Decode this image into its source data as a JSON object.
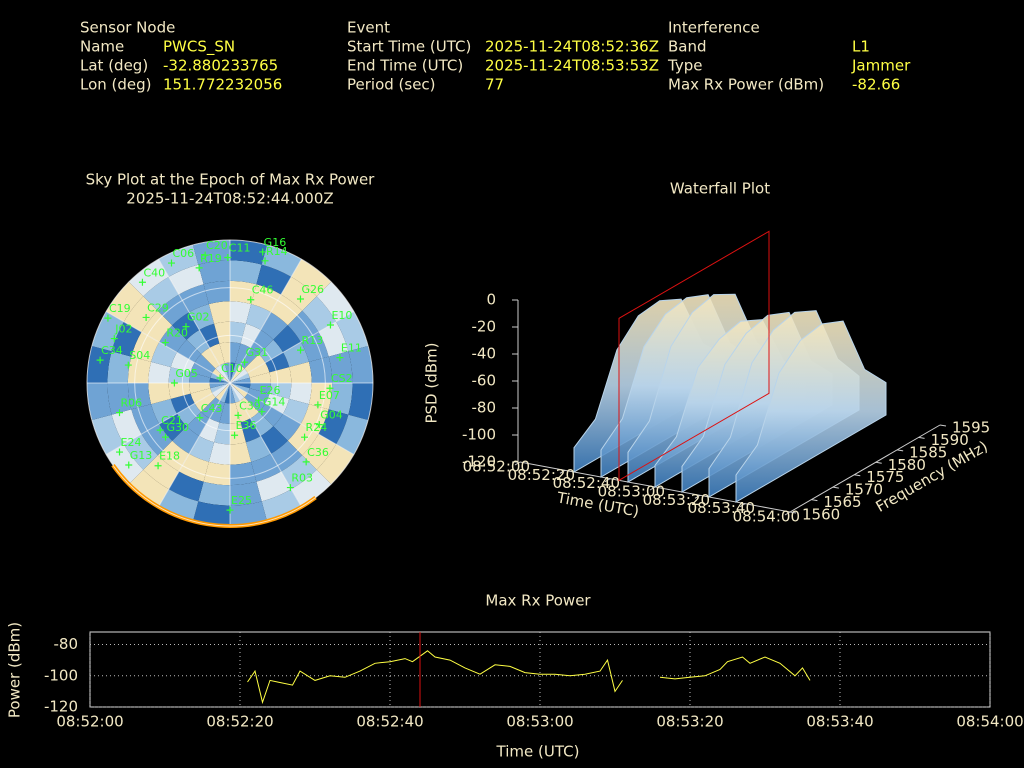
{
  "header": {
    "sensor_node": {
      "title": "Sensor Node",
      "rows": [
        [
          "Name",
          "PWCS_SN"
        ],
        [
          "Lat (deg)",
          "-32.880233765"
        ],
        [
          "Lon (deg)",
          "151.772232056"
        ]
      ]
    },
    "event": {
      "title": "Event",
      "rows": [
        [
          "Start Time (UTC)",
          "2025-11-24T08:52:36Z"
        ],
        [
          "End Time (UTC)",
          "2025-11-24T08:53:53Z"
        ],
        [
          "Period (sec)",
          "77"
        ]
      ]
    },
    "interference": {
      "title": "Interference",
      "rows": [
        [
          "Band",
          "L1"
        ],
        [
          "Type",
          "Jammer"
        ],
        [
          "Max Rx Power (dBm)",
          "-82.66"
        ]
      ]
    }
  },
  "chart_data": [
    {
      "type": "polar-scatter",
      "title": "Sky Plot at the Epoch of Max Rx Power",
      "subtitle": "2025-11-24T08:52:44.000Z",
      "color": "#33ff33",
      "ellim": [
        0,
        90
      ],
      "grid": true,
      "labels": [
        "G16",
        "R14",
        "C20",
        "C11",
        "R19",
        "C06",
        "C40",
        "G26",
        "C46",
        "E10",
        "R13",
        "E11",
        "G31",
        "G02",
        "R20",
        "C29",
        "C19",
        "J02",
        "C34",
        "S04",
        "G05",
        "C10",
        "CS2",
        "E07",
        "C43",
        "R06",
        "C21",
        "G30",
        "C39",
        "E26",
        "G14",
        "E36",
        "G04",
        "R24",
        "C36",
        "E24",
        "G13",
        "E18",
        "R03",
        "E25"
      ],
      "azimuth": [
        14,
        16,
        349,
        359,
        345,
        334,
        319,
        40,
        14,
        60,
        65,
        77,
        35,
        322,
        302,
        308,
        298,
        291,
        280,
        280,
        270,
        297,
        93,
        104,
        221,
        255,
        236,
        230,
        166,
        121,
        132,
        175,
        115,
        126,
        136,
        238,
        231,
        221,
        150,
        180
      ],
      "elevation": [
        5,
        10,
        8,
        11,
        15,
        6,
        6,
        21,
        36,
        17,
        41,
        19,
        74,
        45,
        42,
        23,
        3,
        12,
        7,
        25,
        55,
        83,
        27,
        33,
        61,
        18,
        37,
        37,
        69,
        69,
        63,
        57,
        28,
        32,
        21,
        8,
        8,
        21,
        14,
        10
      ]
    },
    {
      "type": "waterfall3d",
      "title": "Waterfall Plot",
      "xlabel": "Time (UTC)",
      "ylabel": "Frequency (MHz)",
      "zlabel": "PSD (dBm)",
      "xlim": [
        "08:52:00",
        "08:54:00"
      ],
      "xticks": [
        "08:52:00",
        "08:52:20",
        "08:52:40",
        "08:53:00",
        "08:53:20",
        "08:53:40",
        "08:54:00"
      ],
      "ylim": [
        1560,
        1595
      ],
      "yticks": [
        1560,
        1565,
        1570,
        1575,
        1580,
        1585,
        1590,
        1595
      ],
      "zlim": [
        -120,
        0
      ],
      "zticks": [
        0,
        -20,
        -40,
        -60,
        -80,
        -100,
        -120
      ],
      "frequencies": [
        1560,
        1565,
        1570,
        1575,
        1580,
        1585,
        1590,
        1595
      ],
      "slices": [
        {
          "x": "08:52:24",
          "values": [
            -102,
            -90,
            -48,
            -32,
            -30,
            -38,
            -80,
            -98
          ]
        },
        {
          "x": "08:52:36",
          "values": [
            -100,
            -86,
            -42,
            -27,
            -24,
            -31,
            -76,
            -96
          ]
        },
        {
          "x": "08:52:48",
          "values": [
            -98,
            -84,
            -38,
            -22,
            -18,
            -27,
            -72,
            -94
          ]
        },
        {
          "x": "08:53:00",
          "values": [
            -104,
            -92,
            -50,
            -38,
            -34,
            -42,
            -82,
            -100
          ]
        },
        {
          "x": "08:53:12",
          "values": [
            -101,
            -88,
            -44,
            -30,
            -26,
            -33,
            -78,
            -97
          ]
        },
        {
          "x": "08:53:24",
          "values": [
            -99,
            -85,
            -39,
            -24,
            -20,
            -28,
            -73,
            -95
          ]
        },
        {
          "x": "08:53:36",
          "values": [
            -100,
            -87,
            -43,
            -28,
            -25,
            -32,
            -77,
            -96
          ]
        }
      ],
      "cursor": "08:52:44",
      "cursor_color": "#dd1111",
      "color": "#b9d4ea"
    },
    {
      "type": "line",
      "title": "Max Rx Power",
      "xlabel": "Time (UTC)",
      "ylabel": "Power (dBm)",
      "xlim": [
        "08:52:00",
        "08:54:00"
      ],
      "xticks": [
        "08:52:00",
        "08:52:20",
        "08:52:40",
        "08:53:00",
        "08:53:20",
        "08:53:40",
        "08:54:00"
      ],
      "ylim": [
        -120,
        -72
      ],
      "yticks": [
        -80,
        -100,
        -120
      ],
      "grid": true,
      "color": "#ffff44",
      "cursor": "08:52:44",
      "cursor_color": "#dd1111",
      "x": [
        "08:52:21",
        "08:52:22",
        "08:52:23",
        "08:52:24",
        "08:52:25",
        "08:52:27",
        "08:52:28",
        "08:52:30",
        "08:52:32",
        "08:52:34",
        "08:52:36",
        "08:52:38",
        "08:52:40",
        "08:52:42",
        "08:52:43",
        "08:52:45",
        "08:52:46",
        "08:52:48",
        "08:52:50",
        "08:52:52",
        "08:52:54",
        "08:52:56",
        "08:52:58",
        "08:53:00",
        "08:53:02",
        "08:53:04",
        "08:53:06",
        "08:53:08",
        "08:53:09",
        "08:53:10",
        "08:53:11",
        "08:53:13",
        "08:53:16",
        "08:53:18",
        "08:53:20",
        "08:53:22",
        "08:53:24",
        "08:53:25",
        "08:53:27",
        "08:53:28",
        "08:53:30",
        "08:53:32",
        "08:53:34",
        "08:53:35",
        "08:53:36"
      ],
      "values": [
        -104,
        -97,
        -117,
        -103,
        -104,
        -106,
        -97,
        -103,
        -100,
        -101,
        -97,
        -92,
        -91,
        -89,
        -91,
        -84,
        -88,
        -90,
        -95,
        -99,
        -93,
        -94,
        -98,
        -99,
        -99,
        -100,
        -99,
        -97,
        -90,
        -110,
        -103,
        null,
        -101,
        -102,
        -101,
        -100,
        -96,
        -91,
        -88,
        -92,
        -88,
        -92,
        -100,
        -95,
        -103
      ]
    }
  ]
}
